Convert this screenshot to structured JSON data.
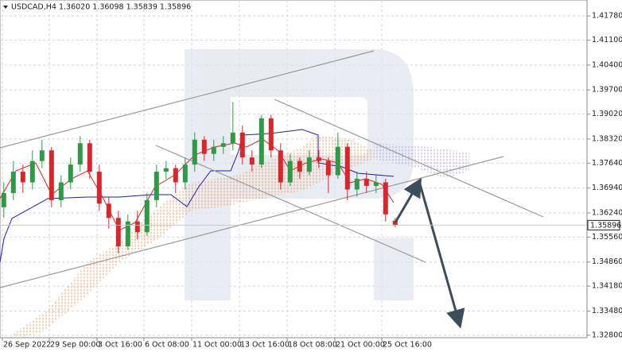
{
  "chart_data": {
    "type": "candlestick",
    "title": "USDCAD,H4 1.36020 1.36098 1.35839 1.35896",
    "last_price": 1.35896,
    "up_color": "#2e9a47",
    "down_color": "#d8262b",
    "grid": true,
    "xlim": [
      -0.4,
      61.1
    ],
    "ylim": [
      1.3273,
      1.4223
    ],
    "yticks": [
      {
        "value": 1.4178,
        "label": "1.41780"
      },
      {
        "value": 1.411,
        "label": "1.41100"
      },
      {
        "value": 1.404,
        "label": "1.40400"
      },
      {
        "value": 1.397,
        "label": "1.39700"
      },
      {
        "value": 1.3902,
        "label": "1.39020"
      },
      {
        "value": 1.3832,
        "label": "1.38320"
      },
      {
        "value": 1.3764,
        "label": "1.37640"
      },
      {
        "value": 1.3694,
        "label": "1.36940"
      },
      {
        "value": 1.3624,
        "label": "1.36240"
      },
      {
        "value": 1.3556,
        "label": "1.35560"
      },
      {
        "value": 1.3486,
        "label": "1.34860"
      },
      {
        "value": 1.3418,
        "label": "1.34180"
      },
      {
        "value": 1.3348,
        "label": "1.33480"
      },
      {
        "value": 1.328,
        "label": "1.32800"
      }
    ],
    "xticks": [
      {
        "value": -0.15,
        "label": "26 Sep 2022"
      },
      {
        "value": 4.77,
        "label": "29 Sep 00:00"
      },
      {
        "value": 9.77,
        "label": "3 Oct 16:00"
      },
      {
        "value": 14.68,
        "label": "6 Oct 08:00"
      },
      {
        "value": 19.68,
        "label": "11 Oct 00:00"
      },
      {
        "value": 24.68,
        "label": "13 Oct 16:00"
      },
      {
        "value": 29.68,
        "label": "18 Oct 08:00"
      },
      {
        "value": 34.68,
        "label": "21 Oct 00:00"
      },
      {
        "value": 39.6,
        "label": "25 Oct 16:00"
      }
    ],
    "open": [
      1.364,
      1.368,
      1.374,
      1.371,
      1.377,
      1.38,
      1.366,
      1.371,
      1.376,
      1.382,
      1.374,
      1.365,
      1.361,
      1.353,
      1.36,
      1.357,
      1.366,
      1.374,
      1.375,
      1.371,
      1.376,
      1.383,
      1.379,
      1.381,
      1.382,
      1.385,
      1.378,
      1.376,
      1.389,
      1.38,
      1.371,
      1.377,
      1.374,
      1.378,
      1.377,
      1.373,
      1.381,
      1.369,
      1.372,
      1.37,
      1.371,
      1.3602
    ],
    "high": [
      1.371,
      1.377,
      1.376,
      1.38,
      1.383,
      1.381,
      1.373,
      1.378,
      1.384,
      1.383,
      1.376,
      1.367,
      1.363,
      1.362,
      1.363,
      1.368,
      1.376,
      1.377,
      1.376,
      1.378,
      1.385,
      1.384,
      1.383,
      1.384,
      1.3935,
      1.387,
      1.38,
      1.39,
      1.39,
      1.382,
      1.379,
      1.378,
      1.38,
      1.38,
      1.378,
      1.385,
      1.382,
      1.374,
      1.374,
      1.373,
      1.372,
      1.36098
    ],
    "low": [
      1.361,
      1.366,
      1.368,
      1.369,
      1.375,
      1.364,
      1.364,
      1.369,
      1.374,
      1.372,
      1.363,
      1.358,
      1.351,
      1.352,
      1.355,
      1.356,
      1.364,
      1.372,
      1.368,
      1.369,
      1.374,
      1.377,
      1.377,
      1.379,
      1.38,
      1.376,
      1.374,
      1.375,
      1.378,
      1.369,
      1.37,
      1.372,
      1.373,
      1.375,
      1.368,
      1.372,
      1.366,
      1.367,
      1.368,
      1.368,
      1.36,
      1.35839
    ],
    "close": [
      1.368,
      1.374,
      1.371,
      1.377,
      1.38,
      1.366,
      1.371,
      1.376,
      1.382,
      1.374,
      1.365,
      1.361,
      1.353,
      1.36,
      1.357,
      1.366,
      1.374,
      1.375,
      1.371,
      1.376,
      1.383,
      1.379,
      1.381,
      1.382,
      1.385,
      1.378,
      1.376,
      1.389,
      1.38,
      1.371,
      1.377,
      1.374,
      1.378,
      1.377,
      1.373,
      1.381,
      1.369,
      1.372,
      1.37,
      1.371,
      1.362,
      1.35896
    ]
  }
}
